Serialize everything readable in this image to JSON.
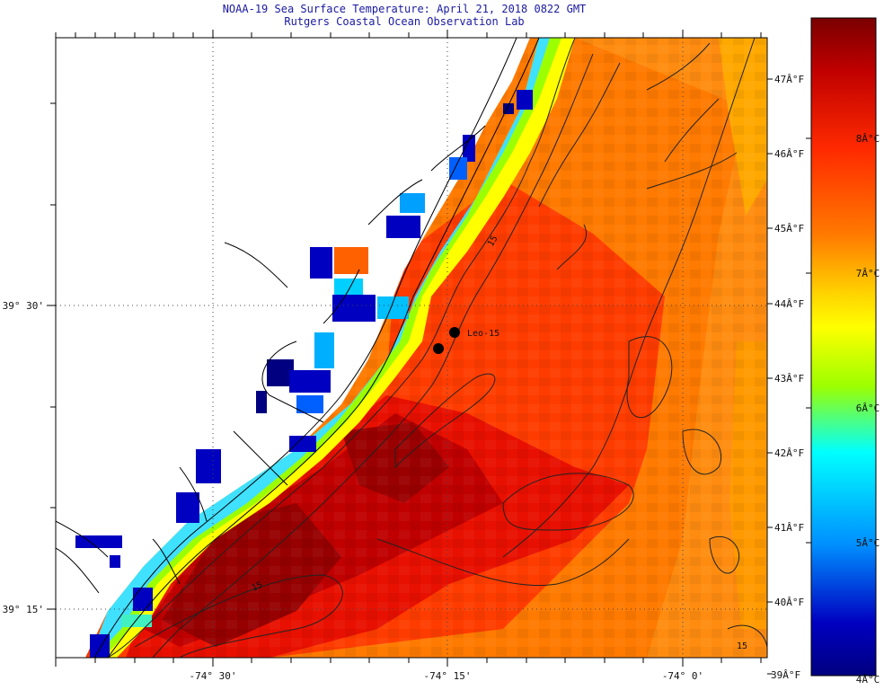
{
  "title": "NOAA-19 Sea Surface Temperature:  April 21, 2018 0822 GMT",
  "subtitle": "Rutgers Coastal Ocean Observation Lab",
  "station_label": "Leo-15",
  "map": {
    "lon_labels": [
      "-74° 30'",
      "-74° 15'",
      "-74° 0'"
    ],
    "lat_labels": [
      "39° 30'",
      "39° 15'"
    ],
    "bathymetry_labels": [
      "15",
      "15",
      "15"
    ]
  },
  "legend": {
    "celsius_ticks": [
      "8Â°C",
      "7Â°C",
      "6Â°C",
      "5Â°C",
      "4Â°C"
    ],
    "fahrenheit_ticks": [
      "47Â°F",
      "46Â°F",
      "45Â°F",
      "44Â°F",
      "43Â°F",
      "42Â°F",
      "41Â°F",
      "40Â°F",
      "39Â°F"
    ],
    "colors": [
      "#7a0000",
      "#c00000",
      "#ff2a00",
      "#ff7a00",
      "#ffd400",
      "#ffff00",
      "#9cff00",
      "#00ffff",
      "#0090ff",
      "#0000c0",
      "#000080"
    ]
  },
  "colors": {
    "title": "#1a1aa0",
    "land": "#ffffff",
    "coastline": "#000000"
  }
}
